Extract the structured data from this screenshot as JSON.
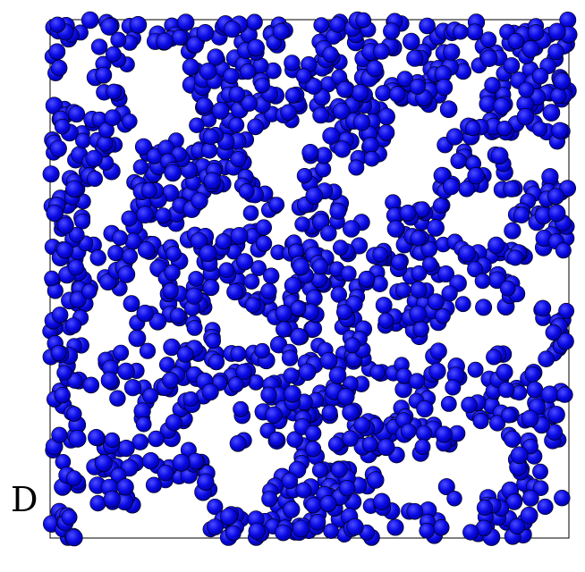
{
  "figure": {
    "panel_label": "D",
    "particle_color": "#0a0ae6",
    "particle_highlight": "#4d4dff",
    "particle_shadow": "#000099",
    "outline_color": "#000000",
    "box_color": "#000000",
    "background_color": "#ffffff",
    "particle_count": 1400,
    "description_visible": false
  }
}
